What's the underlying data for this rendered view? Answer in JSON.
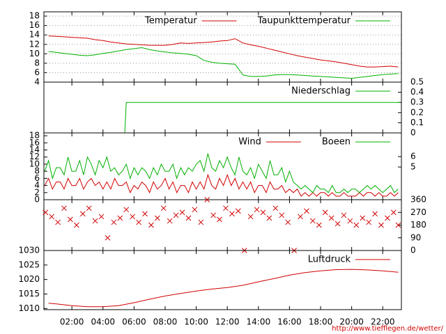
{
  "chart_data": [
    {
      "type": "line",
      "xlim": [
        0.2,
        23.2
      ],
      "ylim": [
        4,
        18.9
      ],
      "yticks": [
        4,
        6,
        8,
        10,
        12,
        14,
        16,
        18
      ],
      "grid": true,
      "x": [
        0.5,
        1,
        1.5,
        2,
        2.5,
        3,
        3.5,
        4,
        4.5,
        5,
        5.5,
        6,
        6.5,
        7,
        7.5,
        8,
        8.5,
        9,
        9.5,
        10,
        10.5,
        11,
        11.5,
        12,
        12.5,
        13,
        13.5,
        14,
        14.5,
        15,
        15.5,
        16,
        16.5,
        17,
        17.5,
        18,
        18.5,
        19,
        19.5,
        20,
        20.5,
        21,
        21.5,
        22,
        22.5,
        23
      ],
      "series": [
        {
          "name": "Temperatur",
          "color": "#d00000",
          "values": [
            13.8,
            13.7,
            13.6,
            13.5,
            13.4,
            13.3,
            13.0,
            12.8,
            12.5,
            12.3,
            12.1,
            12.0,
            11.9,
            11.8,
            11.8,
            11.8,
            12.0,
            12.3,
            12.2,
            12.3,
            12.4,
            12.5,
            12.7,
            12.8,
            13.2,
            12.3,
            11.9,
            11.6,
            11.2,
            10.8,
            10.4,
            10.0,
            9.6,
            9.3,
            9.0,
            8.7,
            8.5,
            8.3,
            8.0,
            7.7,
            7.4,
            7.2,
            7.2,
            7.3,
            7.4,
            7.2
          ]
        },
        {
          "name": "Taupunkttemperatur",
          "color": "#00b000",
          "values": [
            10.5,
            10.3,
            10.1,
            9.9,
            9.7,
            9.6,
            9.8,
            10.1,
            10.3,
            10.6,
            10.9,
            11.1,
            11.3,
            10.9,
            10.6,
            10.4,
            10.2,
            10.1,
            9.9,
            9.6,
            8.6,
            8.2,
            8.0,
            7.9,
            7.8,
            5.5,
            5.2,
            5.2,
            5.3,
            5.5,
            5.6,
            5.6,
            5.5,
            5.4,
            5.3,
            5.2,
            5.1,
            5.0,
            4.9,
            4.8,
            5.0,
            5.2,
            5.4,
            5.6,
            5.7,
            5.8
          ]
        }
      ]
    },
    {
      "type": "line",
      "xlim": [
        0.2,
        23.2
      ],
      "y2lim": [
        0,
        0.5
      ],
      "y2ticks": [
        0,
        0.1,
        0.2,
        0.3,
        0.4,
        0.5
      ],
      "grid": false,
      "x": [
        0.3,
        5.4,
        5.5,
        23.1
      ],
      "series": [
        {
          "name": "Niederschlag",
          "color": "#00b000",
          "axis": "y2",
          "values": [
            0,
            0,
            0.3,
            0.3
          ]
        }
      ]
    },
    {
      "type": "line",
      "xlim": [
        0.2,
        23.2
      ],
      "ylim": [
        0,
        18.8
      ],
      "yticks": [
        0,
        2,
        4,
        6,
        8,
        10,
        12,
        14,
        16,
        18
      ],
      "y2lim": [
        1.87,
        8.27
      ],
      "y2ticks": [
        5,
        6
      ],
      "grid": false,
      "x": [
        0.25,
        0.5,
        0.75,
        1,
        1.25,
        1.5,
        1.75,
        2,
        2.25,
        2.5,
        2.75,
        3,
        3.25,
        3.5,
        3.75,
        4,
        4.25,
        4.5,
        4.75,
        5,
        5.25,
        5.5,
        5.75,
        6,
        6.25,
        6.5,
        6.75,
        7,
        7.25,
        7.5,
        7.75,
        8,
        8.25,
        8.5,
        8.75,
        9,
        9.25,
        9.5,
        9.75,
        10,
        10.25,
        10.5,
        10.75,
        11,
        11.25,
        11.5,
        11.75,
        12,
        12.25,
        12.5,
        12.75,
        13,
        13.25,
        13.5,
        13.75,
        14,
        14.25,
        14.5,
        14.75,
        15,
        15.25,
        15.5,
        15.75,
        16,
        16.25,
        16.5,
        16.75,
        17,
        17.25,
        17.5,
        17.75,
        18,
        18.25,
        18.5,
        18.75,
        19,
        19.25,
        19.5,
        19.75,
        20,
        20.25,
        20.5,
        20.75,
        21,
        21.25,
        21.5,
        21.75,
        22,
        22.25,
        22.5,
        22.75,
        23
      ],
      "series": [
        {
          "name": "Wind",
          "color": "#d00000",
          "values": [
            4,
            6,
            3,
            5,
            5,
            3,
            6,
            4,
            4,
            6,
            3,
            5,
            6,
            4,
            5,
            3,
            5,
            3,
            6,
            4,
            4,
            5,
            2,
            4,
            3,
            5,
            4,
            2,
            5,
            3,
            4,
            6,
            3,
            5,
            2,
            4,
            4,
            2,
            5,
            3,
            5,
            3,
            7,
            4,
            3,
            6,
            4,
            7,
            4,
            6,
            3,
            5,
            3,
            5,
            2,
            4,
            4,
            2,
            5,
            3,
            3,
            4,
            2,
            3,
            2,
            3,
            1,
            2,
            1,
            2,
            1,
            2,
            2,
            1,
            2,
            1,
            1,
            2,
            1,
            1,
            1,
            2,
            1,
            2,
            2,
            1,
            2,
            1,
            1,
            2,
            1,
            2
          ]
        },
        {
          "name": "Boeen",
          "color": "#00b000",
          "values": [
            8,
            11,
            6,
            9,
            9,
            7,
            12,
            8,
            8,
            11,
            7,
            12,
            10,
            7,
            11,
            9,
            12,
            8,
            9,
            7,
            8,
            10,
            6,
            9,
            7,
            9,
            8,
            6,
            9,
            7,
            10,
            8,
            8,
            10,
            6,
            9,
            7,
            9,
            8,
            10,
            11,
            8,
            13,
            9,
            8,
            11,
            9,
            12,
            9,
            7,
            12,
            8,
            7,
            9,
            6,
            10,
            8,
            6,
            11,
            7,
            7,
            9,
            5,
            8,
            5,
            4,
            3,
            4,
            3,
            2,
            4,
            3,
            3,
            2,
            4,
            2,
            2,
            3,
            2,
            3,
            3,
            2,
            3,
            4,
            3,
            4,
            3,
            2,
            3,
            4,
            2,
            3
          ]
        }
      ]
    },
    {
      "type": "scatter",
      "xlim": [
        0.2,
        23.2
      ],
      "y2lim": [
        0,
        360
      ],
      "y2ticks": [
        0,
        90,
        180,
        270,
        360
      ],
      "color": "#d00000",
      "x": [
        0.3,
        0.7,
        1.1,
        1.5,
        1.9,
        2.3,
        2.7,
        3.1,
        3.5,
        3.9,
        4.3,
        4.7,
        5.1,
        5.5,
        5.9,
        6.3,
        6.7,
        7.1,
        7.5,
        7.9,
        8.3,
        8.7,
        9.1,
        9.5,
        9.9,
        10.3,
        10.7,
        11.1,
        11.5,
        11.9,
        12.3,
        12.7,
        13.1,
        13.5,
        13.9,
        14.3,
        14.7,
        15.1,
        15.5,
        15.9,
        16.3,
        16.7,
        17.1,
        17.5,
        17.9,
        18.3,
        18.7,
        19.1,
        19.5,
        19.9,
        20.3,
        20.7,
        21.1,
        21.5,
        21.9,
        22.3,
        22.7,
        23.0
      ],
      "values": [
        270,
        240,
        200,
        300,
        220,
        180,
        260,
        300,
        210,
        240,
        90,
        200,
        230,
        290,
        240,
        200,
        260,
        180,
        230,
        300,
        210,
        250,
        270,
        230,
        290,
        200,
        360,
        250,
        220,
        300,
        260,
        280,
        0,
        240,
        290,
        270,
        230,
        300,
        250,
        200,
        0,
        240,
        280,
        210,
        180,
        270,
        230,
        190,
        250,
        210,
        180,
        230,
        200,
        260,
        180,
        230,
        270,
        180
      ]
    },
    {
      "type": "line",
      "xlim": [
        0.2,
        23.2
      ],
      "ylim": [
        1009.6,
        1030
      ],
      "yticks": [
        1010,
        1015,
        1020,
        1025,
        1030
      ],
      "grid": false,
      "xticks": [
        {
          "value": 2,
          "label": "02:00"
        },
        {
          "value": 4,
          "label": "04:00"
        },
        {
          "value": 6,
          "label": "06:00"
        },
        {
          "value": 8,
          "label": "08:00"
        },
        {
          "value": 10,
          "label": "10:00"
        },
        {
          "value": 12,
          "label": "12:00"
        },
        {
          "value": 14,
          "label": "14:00"
        },
        {
          "value": 16,
          "label": "16:00"
        },
        {
          "value": 18,
          "label": "18:00"
        },
        {
          "value": 20,
          "label": "20:00"
        },
        {
          "value": 22,
          "label": "22:00"
        }
      ],
      "x": [
        0.5,
        1,
        2,
        3,
        4,
        5,
        6,
        7,
        8,
        9,
        10,
        11,
        12,
        13,
        14,
        15,
        16,
        17,
        18,
        19,
        20,
        21,
        22,
        23
      ],
      "series": [
        {
          "name": "Luftdruck",
          "color": "#d00000",
          "values": [
            1011.8,
            1011.6,
            1011.0,
            1010.6,
            1010.6,
            1011.0,
            1012.0,
            1013.2,
            1014.3,
            1015.2,
            1016.0,
            1016.7,
            1017.2,
            1018.0,
            1019.2,
            1020.3,
            1021.5,
            1022.4,
            1023.0,
            1023.4,
            1023.5,
            1023.3,
            1023.0,
            1022.5
          ]
        }
      ]
    }
  ],
  "footer": "http://www.tiefflegen.de/wetter/"
}
